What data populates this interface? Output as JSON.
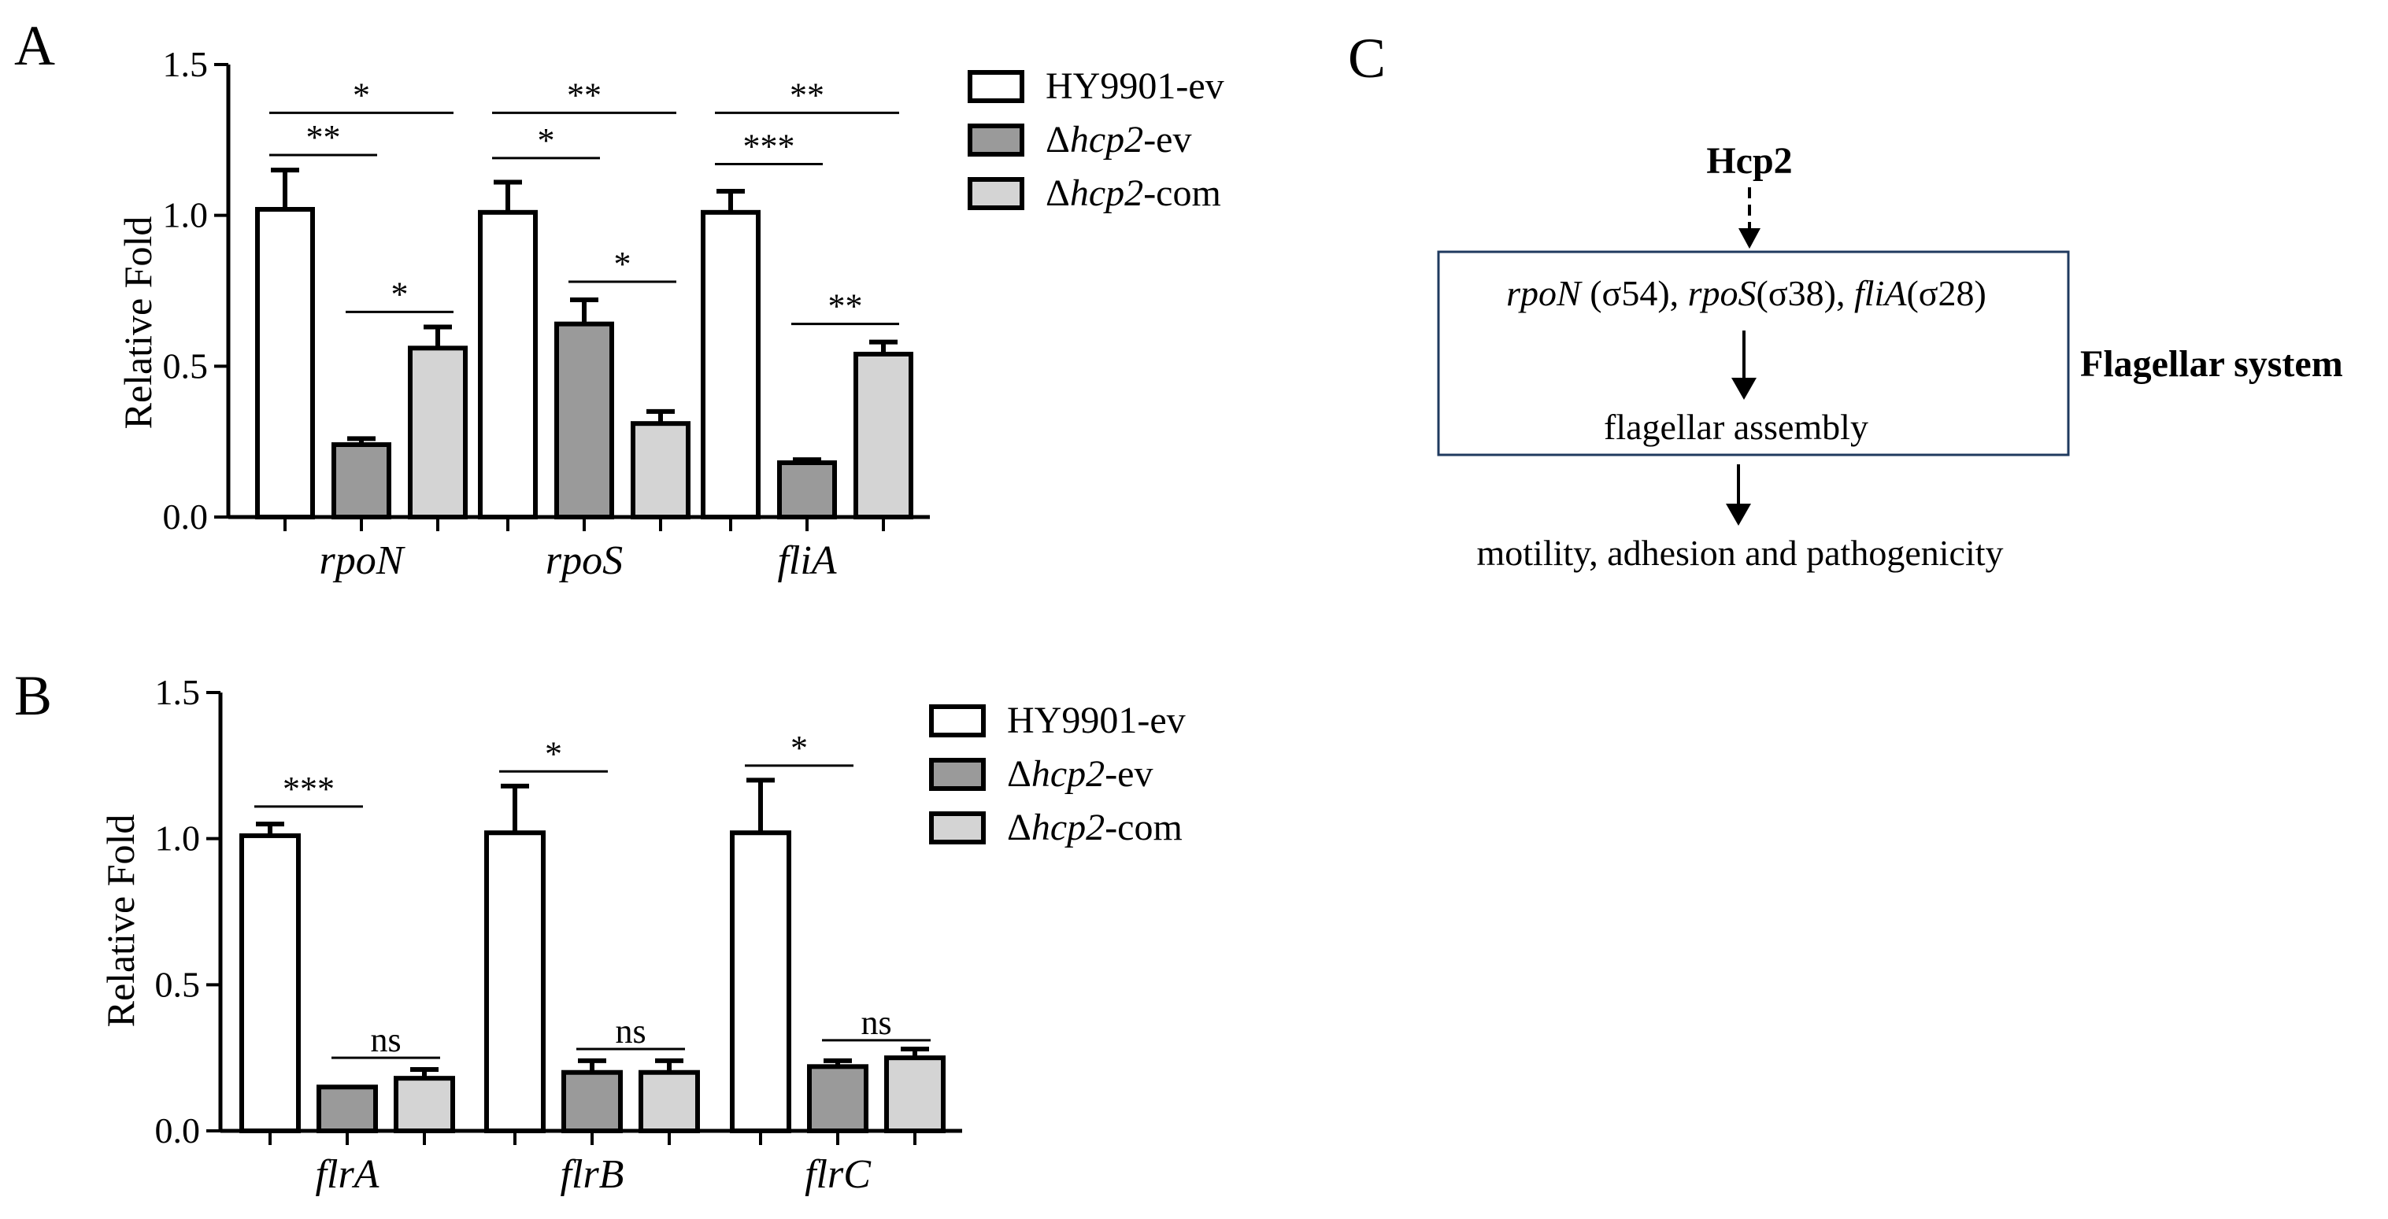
{
  "panel_labels": {
    "a": "A",
    "b": "B",
    "c": "C"
  },
  "legend": {
    "items": [
      {
        "pre": "",
        "italic": "",
        "post": "HY9901-ev",
        "color": "#ffffff"
      },
      {
        "pre": "Δ",
        "italic": "hcp2",
        "post": "-ev",
        "color": "#9a9a9a"
      },
      {
        "pre": "Δ",
        "italic": "hcp2",
        "post": "-com",
        "color": "#d4d4d4"
      }
    ]
  },
  "chart_data": [
    {
      "type": "bar",
      "panel": "A",
      "ylabel": "Relative Fold",
      "ylim": [
        0,
        1.5
      ],
      "yticks": [
        "0.0",
        "0.5",
        "1.0",
        "1.5"
      ],
      "categories": [
        "rpoN",
        "rpoS",
        "fliA"
      ],
      "series": [
        {
          "name": "HY9901-ev",
          "values": [
            1.02,
            1.01,
            1.01
          ],
          "errors": [
            0.13,
            0.1,
            0.07
          ],
          "color": "#ffffff"
        },
        {
          "name": "Δhcp2-ev",
          "values": [
            0.24,
            0.64,
            0.18
          ],
          "errors": [
            0.02,
            0.08,
            0.01
          ],
          "color": "#9a9a9a"
        },
        {
          "name": "Δhcp2-com",
          "values": [
            0.56,
            0.31,
            0.54
          ],
          "errors": [
            0.07,
            0.04,
            0.04
          ],
          "color": "#d4d4d4"
        }
      ],
      "significance": [
        {
          "cat": 0,
          "from": 0,
          "to": 2,
          "label": "*",
          "level": 1.34
        },
        {
          "cat": 0,
          "from": 0,
          "to": 1,
          "label": "**",
          "level": 1.2
        },
        {
          "cat": 0,
          "from": 1,
          "to": 2,
          "label": "*",
          "level": 0.68
        },
        {
          "cat": 1,
          "from": 0,
          "to": 2,
          "label": "**",
          "level": 1.34
        },
        {
          "cat": 1,
          "from": 0,
          "to": 1,
          "label": "*",
          "level": 1.19
        },
        {
          "cat": 1,
          "from": 1,
          "to": 2,
          "label": "*",
          "level": 0.78
        },
        {
          "cat": 2,
          "from": 0,
          "to": 2,
          "label": "**",
          "level": 1.34
        },
        {
          "cat": 2,
          "from": 0,
          "to": 1,
          "label": "***",
          "level": 1.17
        },
        {
          "cat": 2,
          "from": 1,
          "to": 2,
          "label": "**",
          "level": 0.64
        }
      ]
    },
    {
      "type": "bar",
      "panel": "B",
      "ylabel": "Relative Fold",
      "ylim": [
        0,
        1.5
      ],
      "yticks": [
        "0.0",
        "0.5",
        "1.0",
        "1.5"
      ],
      "categories": [
        "flrA",
        "flrB",
        "flrC"
      ],
      "series": [
        {
          "name": "HY9901-ev",
          "values": [
            1.01,
            1.02,
            1.02
          ],
          "errors": [
            0.04,
            0.16,
            0.18
          ],
          "color": "#ffffff"
        },
        {
          "name": "Δhcp2-ev",
          "values": [
            0.15,
            0.2,
            0.22
          ],
          "errors": [
            0.0,
            0.04,
            0.02
          ],
          "color": "#9a9a9a"
        },
        {
          "name": "Δhcp2-com",
          "values": [
            0.18,
            0.2,
            0.25
          ],
          "errors": [
            0.03,
            0.04,
            0.03
          ],
          "color": "#d4d4d4"
        }
      ],
      "significance": [
        {
          "cat": 0,
          "from": 0,
          "to": 1,
          "label": "***",
          "level": 1.11
        },
        {
          "cat": 0,
          "from": 1,
          "to": 2,
          "label": "ns",
          "level": 0.25
        },
        {
          "cat": 1,
          "from": 0,
          "to": 1,
          "label": "*",
          "level": 1.23
        },
        {
          "cat": 1,
          "from": 1,
          "to": 2,
          "label": "ns",
          "level": 0.28
        },
        {
          "cat": 2,
          "from": 0,
          "to": 1,
          "label": "*",
          "level": 1.25
        },
        {
          "cat": 2,
          "from": 1,
          "to": 2,
          "label": "ns",
          "level": 0.31
        }
      ]
    }
  ],
  "diagram": {
    "top": "Hcp2",
    "box_line": [
      {
        "text": "rpoN",
        "italic": true
      },
      {
        "text": " (σ54), ",
        "italic": false
      },
      {
        "text": "rpoS",
        "italic": true
      },
      {
        "text": "(σ38), ",
        "italic": false
      },
      {
        "text": "fliA",
        "italic": true
      },
      {
        "text": "(σ28)",
        "italic": false
      }
    ],
    "box_bottom": "flagellar assembly",
    "side_label": "Flagellar system",
    "bottom": "motility, adhesion and pathogenicity"
  }
}
